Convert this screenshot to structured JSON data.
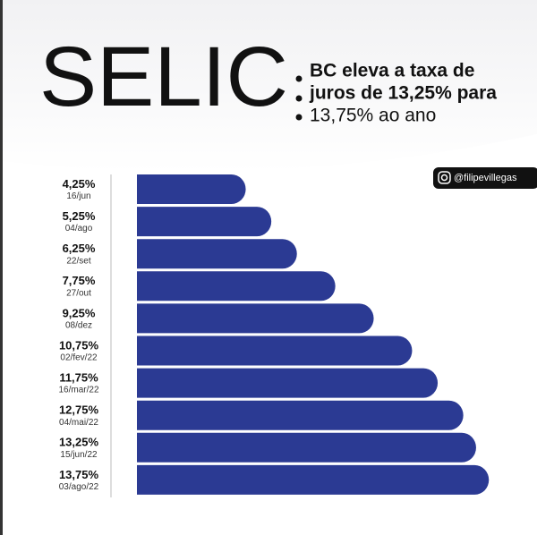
{
  "chart_data": {
    "type": "bar",
    "orientation": "horizontal",
    "title": "SELIC",
    "subtitle": [
      "BC eleva a taxa de",
      "juros de 13,25% para",
      "13,75% ao ano"
    ],
    "handle": "@filipevillegas",
    "categories": [
      "16/jun",
      "04/ago",
      "22/set",
      "27/out",
      "08/dez",
      "02/fev/22",
      "16/mar/22",
      "04/mai/22",
      "15/jun/22",
      "03/ago/22"
    ],
    "values": [
      4.25,
      5.25,
      6.25,
      7.75,
      9.25,
      10.75,
      11.75,
      12.75,
      13.25,
      13.75
    ],
    "value_labels": [
      "4,25%",
      "5,25%",
      "6,25%",
      "7,75%",
      "9,25%",
      "10,75%",
      "11,75%",
      "12,75%",
      "13,25%",
      "13,75%"
    ],
    "color": "#2b3a93"
  }
}
